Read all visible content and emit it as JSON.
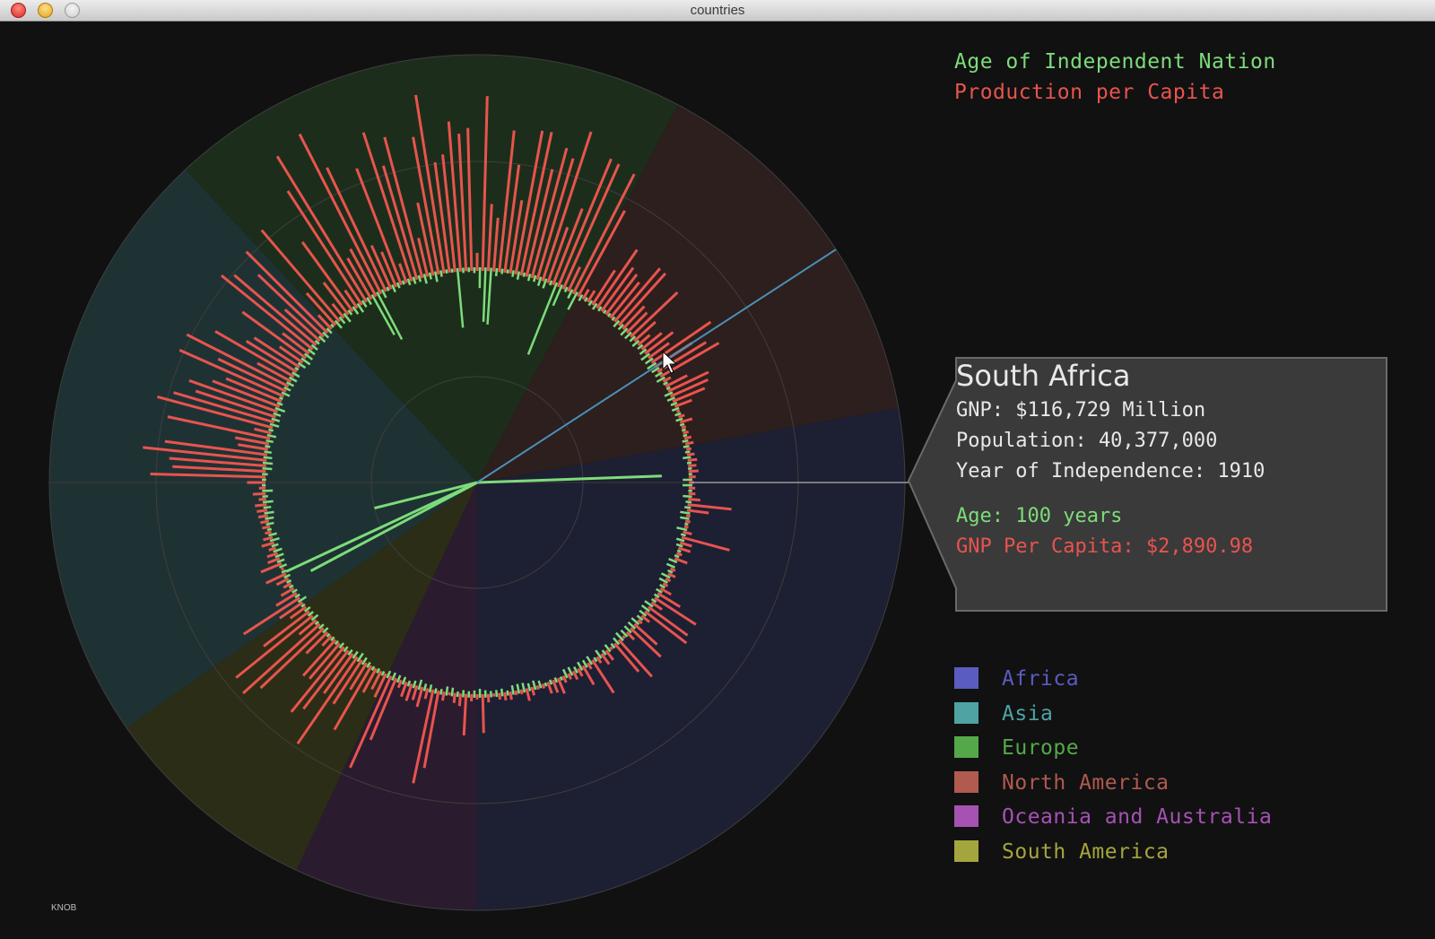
{
  "window": {
    "title": "countries"
  },
  "legend": {
    "age_label": "Age of Independent Nation",
    "production_label": "Production per Capita",
    "age_color": "#7ddc7a",
    "production_color": "#e8544e"
  },
  "tooltip": {
    "country": "South Africa",
    "gnp": "GNP: $116,729 Million",
    "population": "Population: 40,377,000",
    "independence": "Year of Independence: 1910",
    "age": "Age: 100 years",
    "gnp_per_capita": "GNP Per Capita: $2,890.98"
  },
  "regions": [
    {
      "name": "Africa",
      "color": "#5a5cc0"
    },
    {
      "name": "Asia",
      "color": "#4fa3a3"
    },
    {
      "name": "Europe",
      "color": "#55a84a"
    },
    {
      "name": "North America",
      "color": "#b05a50"
    },
    {
      "name": "Oceania and Australia",
      "color": "#a552b3"
    },
    {
      "name": "South America",
      "color": "#a5a53e"
    }
  ],
  "knob_label": "KNOB",
  "chart_data": {
    "type": "radial bar",
    "selected_country": "South Africa",
    "series": [
      {
        "name": "Age of Independent Nation",
        "color": "#7ddc7a"
      },
      {
        "name": "Production per Capita",
        "color": "#e8544e"
      }
    ],
    "selected_values": {
      "age_years": 100,
      "gnp_per_capita": 2890.98
    }
  }
}
